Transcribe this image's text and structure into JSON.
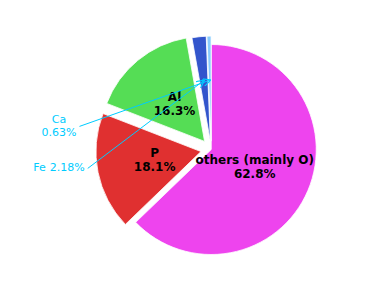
{
  "chart_data": {
    "type": "pie",
    "categories": [
      "others (mainly O)",
      "P",
      "Al",
      "Fe",
      "Ca"
    ],
    "values": [
      62.8,
      18.1,
      16.3,
      2.18,
      0.63
    ],
    "value_labels": [
      "62.8%",
      "18.1%",
      "16.3%",
      "2.18%",
      "0.63%"
    ],
    "colors": [
      "#ee44ee",
      "#e03030",
      "#55dd55",
      "#3355cc",
      "#88ccff"
    ]
  }
}
